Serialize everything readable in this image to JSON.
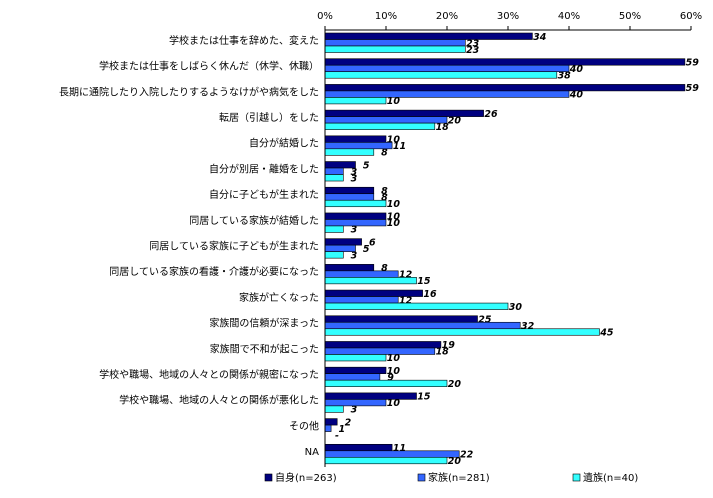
{
  "chart_data": {
    "type": "bar",
    "orientation": "horizontal",
    "categories": [
      "学校または仕事を辞めた、変えた",
      "学校または仕事をしばらく休んだ（休学、休職）",
      "長期に通院したり入院したりするようなけがや病気をした",
      "転居（引越し）をした",
      "自分が結婚した",
      "自分が別居・離婚をした",
      "自分に子どもが生まれた",
      "同居している家族が結婚した",
      "同居している家族に子どもが生まれた",
      "同居している家族の看護・介護が必要になった",
      "家族が亡くなった",
      "家族間の信頼が深まった",
      "家族間で不和が起こった",
      "学校や職場、地域の人々との関係が親密になった",
      "学校や職場、地域の人々との関係が悪化した",
      "その他",
      "NA"
    ],
    "series": [
      {
        "name": "自身(n=263)",
        "color": "#000080",
        "values": [
          34,
          59,
          59,
          26,
          10,
          5,
          8,
          10,
          6,
          8,
          16,
          25,
          19,
          10,
          15,
          2,
          11
        ]
      },
      {
        "name": "家族(n=281)",
        "color": "#3366ff",
        "values": [
          23,
          40,
          40,
          20,
          11,
          3,
          8,
          10,
          5,
          12,
          12,
          32,
          18,
          9,
          10,
          1,
          22
        ]
      },
      {
        "name": "遺族(n=40)",
        "color": "#33ffff",
        "values": [
          23,
          38,
          10,
          18,
          8,
          3,
          10,
          3,
          3,
          15,
          30,
          45,
          10,
          20,
          3,
          0,
          20
        ],
        "value_labels": [
          "23",
          "38",
          "10",
          "18",
          "8",
          "3",
          "10",
          "3",
          "3",
          "15",
          "30",
          "45",
          "10",
          "20",
          "3",
          "-",
          "20"
        ]
      }
    ],
    "xlim": [
      0,
      60
    ],
    "xticks": [
      {
        "value": 0,
        "label": "0%"
      },
      {
        "value": 10,
        "label": "10%"
      },
      {
        "value": 20,
        "label": "20%"
      },
      {
        "value": 30,
        "label": "30%"
      },
      {
        "value": 40,
        "label": "40%"
      },
      {
        "value": 50,
        "label": "50%"
      },
      {
        "value": 60,
        "label": "60%"
      }
    ],
    "legend": "bottom"
  }
}
